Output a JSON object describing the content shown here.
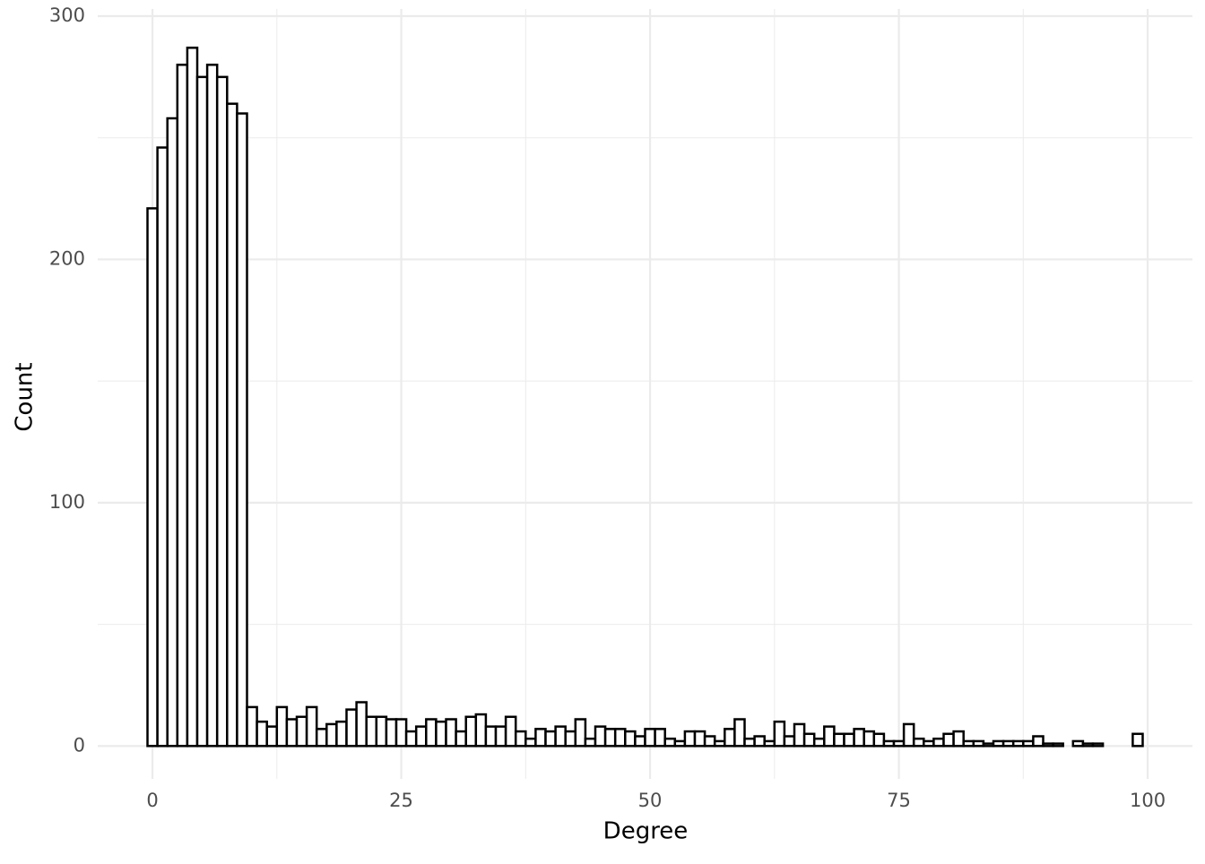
{
  "chart_data": {
    "type": "histogram",
    "x_label": "Degree",
    "y_label": "Count",
    "bins": [
      -0.5,
      0.5,
      1.5,
      2.5,
      3.5,
      4.5,
      5.5,
      6.5,
      7.5,
      8.5,
      9.5,
      10.5,
      11.5,
      12.5,
      13.5,
      14.5,
      15.5,
      16.5,
      17.5,
      18.5,
      19.5,
      20.5,
      21.5,
      22.5,
      23.5,
      24.5,
      25.5,
      26.5,
      27.5,
      28.5,
      29.5,
      30.5,
      31.5,
      32.5,
      33.5,
      34.5,
      35.5,
      36.5,
      37.5,
      38.5,
      39.5,
      40.5,
      41.5,
      42.5,
      43.5,
      44.5,
      45.5,
      46.5,
      47.5,
      48.5,
      49.5,
      50.5,
      51.5,
      52.5,
      53.5,
      54.5,
      55.5,
      56.5,
      57.5,
      58.5,
      59.5,
      60.5,
      61.5,
      62.5,
      63.5,
      64.5,
      65.5,
      66.5,
      67.5,
      68.5,
      69.5,
      70.5,
      71.5,
      72.5,
      73.5,
      74.5,
      75.5,
      76.5,
      77.5,
      78.5,
      79.5,
      80.5,
      81.5,
      82.5,
      83.5,
      84.5,
      85.5,
      86.5,
      87.5,
      88.5,
      89.5,
      90.5,
      91.5,
      92.5,
      93.5,
      94.5,
      95.5,
      96.5,
      97.5,
      98.5,
      99.5
    ],
    "values": [
      221,
      246,
      258,
      280,
      287,
      275,
      280,
      275,
      264,
      260,
      16,
      10,
      8,
      16,
      11,
      12,
      16,
      7,
      9,
      10,
      15,
      18,
      12,
      12,
      11,
      11,
      6,
      8,
      11,
      10,
      11,
      6,
      12,
      13,
      8,
      8,
      12,
      6,
      3,
      7,
      6,
      8,
      6,
      11,
      3,
      8,
      7,
      7,
      6,
      4,
      7,
      7,
      3,
      2,
      6,
      6,
      4,
      2,
      7,
      11,
      3,
      4,
      2,
      10,
      4,
      9,
      5,
      3,
      8,
      5,
      5,
      7,
      6,
      5,
      2,
      2,
      9,
      3,
      2,
      3,
      5,
      6,
      2,
      2,
      1,
      2,
      2,
      2,
      2,
      4,
      1,
      1,
      0,
      2,
      1,
      1,
      0,
      0,
      0,
      5
    ],
    "color": "#ffffff",
    "edge_color": "#000000",
    "xlim": [
      -5.5,
      104.5
    ],
    "xticks": [
      0,
      25,
      50,
      75,
      100
    ],
    "ylim": [
      -13.5,
      300
    ],
    "yticks": [
      0,
      100,
      200,
      300
    ],
    "grid": true
  }
}
